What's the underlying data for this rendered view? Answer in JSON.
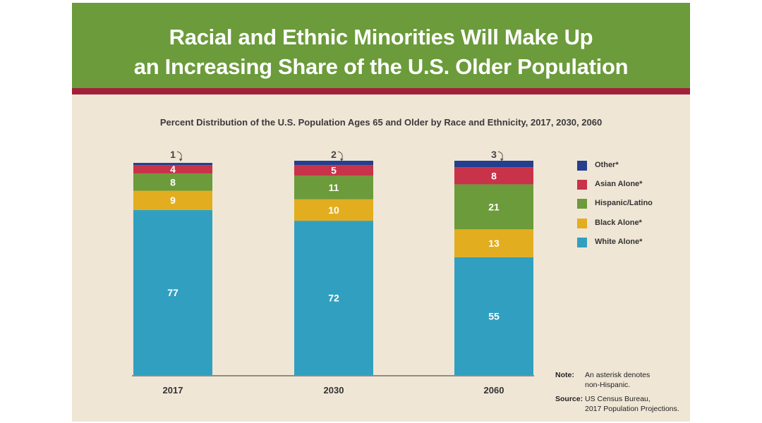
{
  "header": {
    "title_line1": "Racial and Ethnic Minorities Will Make Up",
    "title_line2": "an Increasing Share of the U.S. Older Population"
  },
  "colors": {
    "header_green": "#6b9b3a",
    "header_stripe": "#a3203a",
    "background": "#f0e6d6"
  },
  "chart_data": {
    "type": "bar",
    "stacked": true,
    "title": "Percent Distribution of the U.S. Population Ages 65 and Older by Race and Ethnicity, 2017, 2030, 2060",
    "categories": [
      "2017",
      "2030",
      "2060"
    ],
    "ylim": [
      0,
      100
    ],
    "grid": false,
    "legend_position": "right",
    "series": [
      {
        "name": "White Alone*",
        "color": "#31a0c0",
        "values": [
          77,
          72,
          55
        ],
        "labels": [
          "77",
          "72",
          "55"
        ]
      },
      {
        "name": "Black Alone*",
        "color": "#e2ad1f",
        "values": [
          9,
          10,
          13
        ],
        "labels": [
          "9",
          "10",
          "13"
        ]
      },
      {
        "name": "Hispanic/Latino",
        "color": "#6b9b3a",
        "values": [
          8,
          11,
          21
        ],
        "labels": [
          "8",
          "11",
          "21"
        ]
      },
      {
        "name": "Asian Alone*",
        "color": "#c8334a",
        "values": [
          4,
          5,
          8
        ],
        "labels": [
          "4",
          "5",
          "8"
        ]
      },
      {
        "name": "Other*",
        "color": "#243f8f",
        "values": [
          1,
          2,
          3
        ],
        "labels": [
          "1",
          "2",
          "3"
        ]
      }
    ],
    "legend_order": [
      "Other*",
      "Asian Alone*",
      "Hispanic/Latino",
      "Black Alone*",
      "White Alone*"
    ]
  },
  "notes": {
    "note_label": "Note:",
    "note_text_line1": "An asterisk denotes",
    "note_text_line2": "non-Hispanic.",
    "source_label": "Source:",
    "source_text_line1": "US Census Bureau,",
    "source_text_line2": "2017 Population Projections."
  }
}
